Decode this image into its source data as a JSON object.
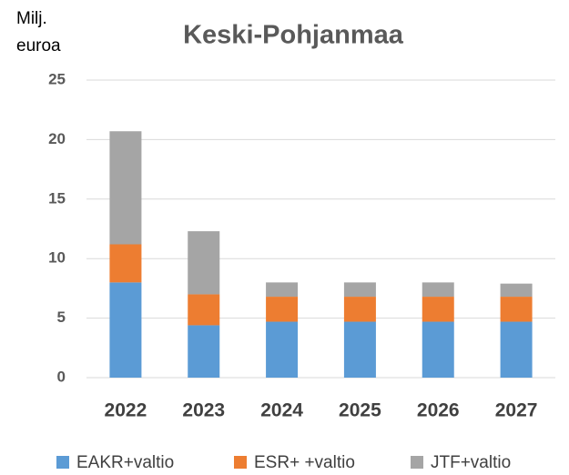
{
  "chart_data": {
    "type": "stacked_bar",
    "title": "Keski-Pohjanmaa",
    "y_label": "Milj. euroa",
    "categories": [
      "2022",
      "2023",
      "2024",
      "2025",
      "2026",
      "2027"
    ],
    "series": [
      {
        "name": "EAKR+valtio",
        "color": "#5b9bd5",
        "values": [
          8.0,
          4.4,
          4.7,
          4.7,
          4.7,
          4.7
        ]
      },
      {
        "name": "ESR+ +valtio",
        "color": "#ed7d31",
        "values": [
          3.2,
          2.6,
          2.1,
          2.1,
          2.1,
          2.1
        ]
      },
      {
        "name": "JTF+valtio",
        "color": "#a5a5a5",
        "values": [
          9.5,
          5.3,
          1.2,
          1.2,
          1.2,
          1.1
        ]
      }
    ],
    "ylim": [
      0,
      25
    ],
    "yticks": [
      0,
      5,
      10,
      15,
      20,
      25
    ],
    "grid": true,
    "legend": "bottom"
  }
}
